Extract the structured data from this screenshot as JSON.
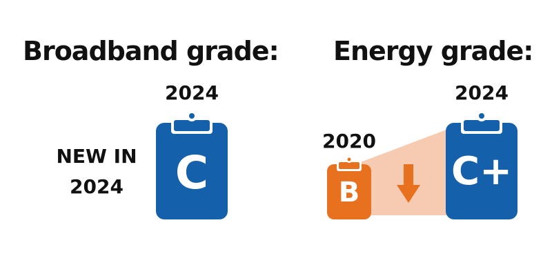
{
  "broadband": {
    "heading": "Broadband grade:",
    "year": "2024",
    "note_line1": "NEW IN",
    "note_line2": "2024",
    "grade": "C"
  },
  "energy": {
    "heading": "Energy grade:",
    "from_year": "2020",
    "from_grade": "B",
    "to_year": "2024",
    "to_grade": "C+"
  },
  "colors": {
    "blue": "#1560ab",
    "orange": "#e8711f",
    "peach": "#f6cbb1",
    "text": "#111111"
  },
  "icons": [
    "clipboard-icon",
    "arrow-down-icon"
  ]
}
